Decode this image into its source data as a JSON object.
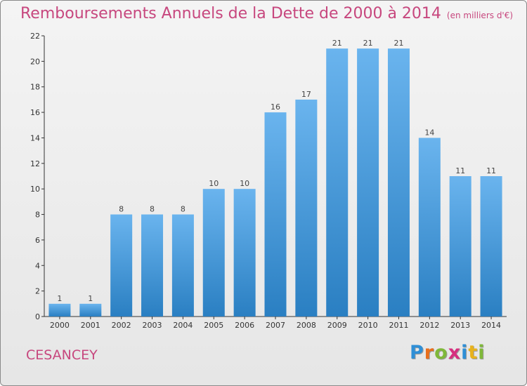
{
  "title": "Remboursements Annuels de la Dette de 2000 à 2014",
  "unit": "(en milliers d'€)",
  "commune": "CESANCEY",
  "logo": {
    "letters": [
      "P",
      "r",
      "o",
      "x",
      "i",
      "t",
      "i"
    ],
    "colors": [
      "#2f8fd6",
      "#e86e1c",
      "#7fb83a",
      "#d62f7f",
      "#2f8fd6",
      "#e8b21c",
      "#7fb83a"
    ]
  },
  "colors": {
    "bar_top": "#6ab4ee",
    "bar_bottom": "#2a7fc2",
    "title": "#c7477e"
  },
  "chart_data": {
    "type": "bar",
    "title": "Remboursements Annuels de la Dette de 2000 à 2014",
    "xlabel": "",
    "ylabel": "",
    "categories": [
      "2000",
      "2001",
      "2002",
      "2003",
      "2004",
      "2005",
      "2006",
      "2007",
      "2008",
      "2009",
      "2010",
      "2011",
      "2012",
      "2013",
      "2014"
    ],
    "values": [
      1,
      1,
      8,
      8,
      8,
      10,
      10,
      16,
      17,
      21,
      21,
      21,
      14,
      11,
      11
    ],
    "ylim": [
      0,
      22
    ],
    "yticks": [
      0,
      2,
      4,
      6,
      8,
      10,
      12,
      14,
      16,
      18,
      20,
      22
    ],
    "grid": false
  }
}
